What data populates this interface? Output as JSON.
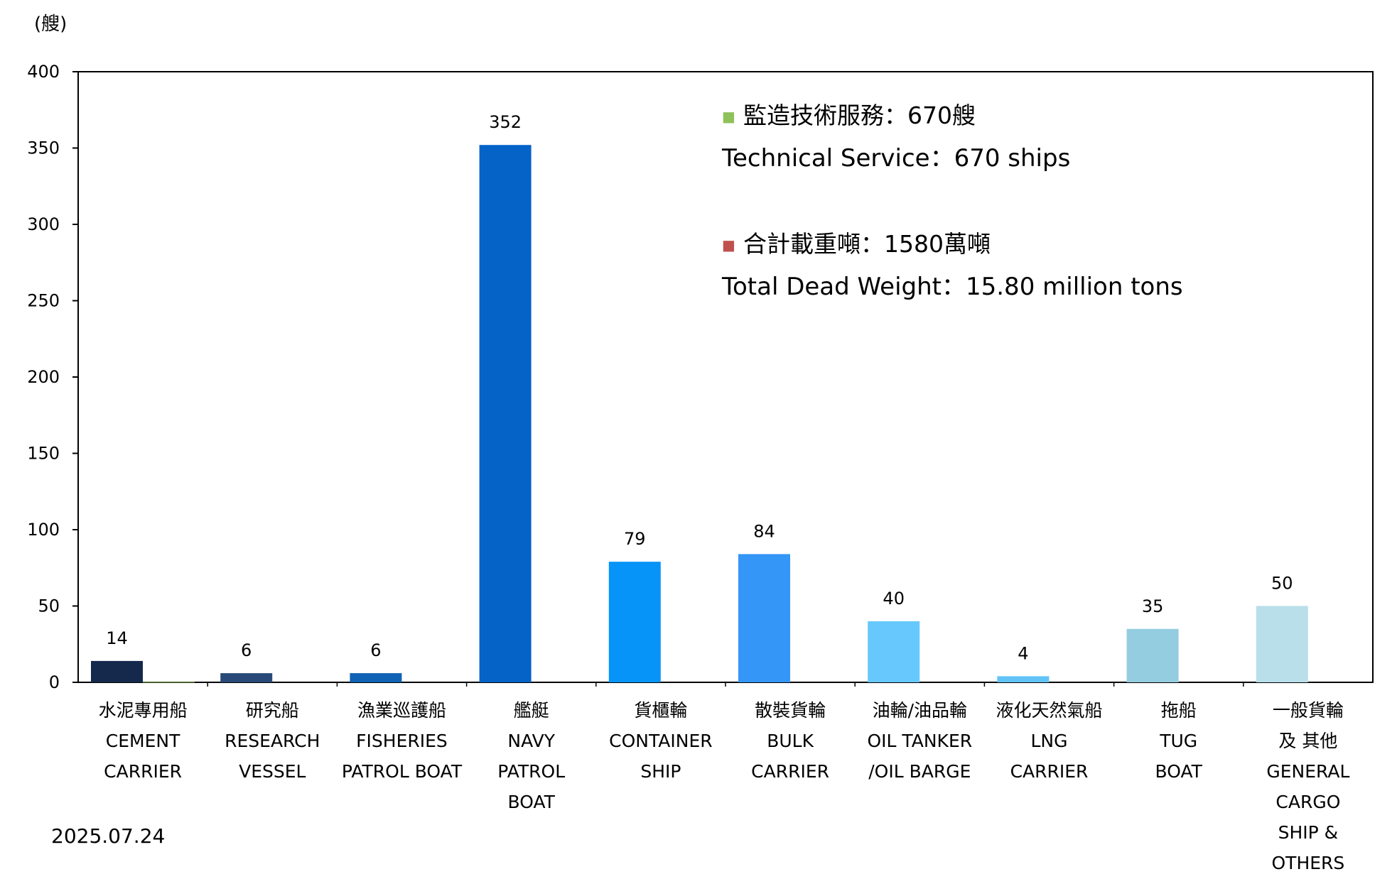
{
  "chart_data": {
    "type": "bar",
    "unit_label": "(艘)",
    "ylim": [
      0,
      400
    ],
    "y_ticks": [
      "0",
      "50",
      "100",
      "150",
      "200",
      "250",
      "300",
      "350",
      "400"
    ],
    "y_tick_values": [
      0,
      50,
      100,
      150,
      200,
      250,
      300,
      350,
      400
    ],
    "grid": false,
    "categories": [
      {
        "lines": [
          "水泥專用船",
          "CEMENT",
          "CARRIER"
        ],
        "value": 14,
        "value_label": "14",
        "secondary_value": 0.3,
        "color": "#14294c"
      },
      {
        "lines": [
          "研究船",
          "RESEARCH",
          "VESSEL"
        ],
        "value": 6,
        "value_label": "6",
        "secondary_value": 0,
        "color": "#294a78"
      },
      {
        "lines": [
          "漁業巡護船",
          "FISHERIES",
          "PATROL BOAT"
        ],
        "value": 6,
        "value_label": "6",
        "secondary_value": 0,
        "color": "#1062b4"
      },
      {
        "lines": [
          "艦艇",
          "NAVY",
          "PATROL",
          "BOAT"
        ],
        "value": 352,
        "value_label": "352",
        "secondary_value": 0,
        "color": "#0563c8"
      },
      {
        "lines": [
          "貨櫃輪",
          "CONTAINER",
          "SHIP"
        ],
        "value": 79,
        "value_label": "79",
        "secondary_value": 0,
        "color": "#0794f8"
      },
      {
        "lines": [
          "散裝貨輪",
          "BULK",
          "CARRIER"
        ],
        "value": 84,
        "value_label": "84",
        "secondary_value": 0,
        "color": "#3496f7"
      },
      {
        "lines": [
          "油輪/油品輪",
          "OIL TANKER",
          "/OIL BARGE"
        ],
        "value": 40,
        "value_label": "40",
        "secondary_value": 0,
        "color": "#66c8fc"
      },
      {
        "lines": [
          "液化天然氣船",
          "LNG",
          "CARRIER"
        ],
        "value": 4,
        "value_label": "4",
        "secondary_value": 0,
        "color": "#62c3f7"
      },
      {
        "lines": [
          "拖船",
          "TUG",
          "BOAT"
        ],
        "value": 35,
        "value_label": "35",
        "secondary_value": 0,
        "color": "#94cce0"
      },
      {
        "lines": [
          "一般貨輪",
          "及 其他",
          "GENERAL",
          "CARGO",
          "SHIP &",
          "OTHERS"
        ],
        "value": 50,
        "value_label": "50",
        "secondary_value": 0,
        "color": "#b8dfea"
      }
    ],
    "annotations": [
      {
        "marker": "■",
        "marker_color": "#8fc15a",
        "text_zh": "監造技術服務：670艘",
        "text_en": "Technical Service：670 ships"
      },
      {
        "marker": "■",
        "marker_color": "#c0504d",
        "text_zh": "合計載重噸：1580萬噸",
        "text_en": "Total Dead Weight：15.80 million tons"
      }
    ],
    "date": "2025.07.24",
    "colors": {
      "axis": "#000000",
      "text": "#000000"
    }
  }
}
